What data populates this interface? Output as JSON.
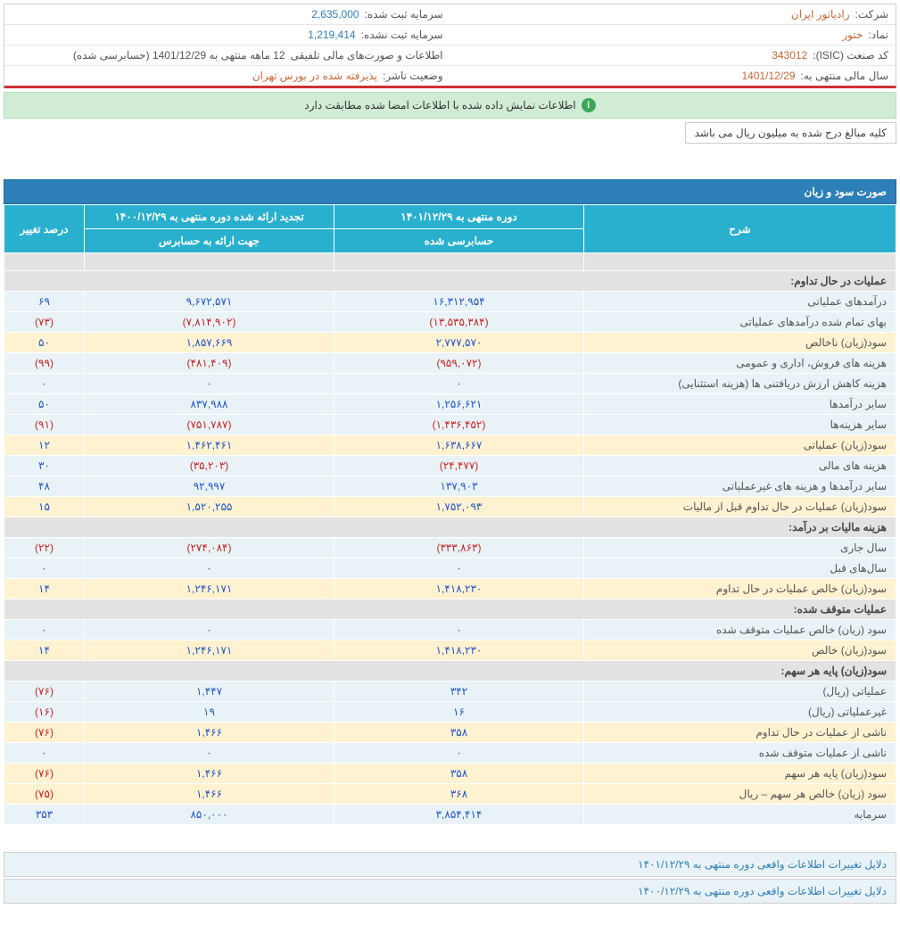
{
  "info": {
    "company_label": "شرکت:",
    "company_value": "رادیاتور ایران",
    "symbol_label": "نماد:",
    "symbol_value": "ختور",
    "isic_label": "کد صنعت (ISIC):",
    "isic_value": "343012",
    "fy_label": "سال مالی منتهی به:",
    "fy_value": "1401/12/29",
    "cap_reg_label": "سرمایه ثبت شده:",
    "cap_reg_value": "2,635,000",
    "cap_unreg_label": "سرمایه ثبت نشده:",
    "cap_unreg_value": "1,219,414",
    "report_label": "اطلاعات و صورت‌های مالی تلفیقی",
    "report_value": "12 ماهه منتهی به 1401/12/29 (حسابرسی شده)",
    "status_label": "وضعیت ناشر:",
    "status_value": "پذیرفته شده در بورس تهران"
  },
  "notice_text": "اطلاعات نمایش داده شده با اطلاعات امضا شده مطابقت دارد",
  "unit_note": "کلیه مبالغ درج شده به میلیون ریال می باشد",
  "section_title": "صورت سود و زیان",
  "headers": {
    "desc": "شرح",
    "period1": "دوره منتهی به ۱۴۰۱/۱۲/۲۹",
    "period1_sub": "حسابرسی شده",
    "period2": "تجدید ارائه شده دوره منتهی به ۱۴۰۰/۱۲/۲۹",
    "period2_sub": "جهت ارائه به حسابرس",
    "change": "درصد تغییر"
  },
  "rows": [
    {
      "type": "header",
      "desc": "عملیات در حال تداوم:"
    },
    {
      "type": "blue",
      "desc": "درآمدهای عملیاتی",
      "p1": "۱۶,۳۱۲,۹۵۴",
      "p2": "۹,۶۷۲,۵۷۱",
      "chg": "۶۹",
      "p1neg": false,
      "p2neg": false,
      "chgneg": false
    },
    {
      "type": "blue",
      "desc": "بهای تمام شده درآمدهای عملیاتی",
      "p1": "(۱۳,۵۳۵,۳۸۴)",
      "p2": "(۷,۸۱۴,۹۰۲)",
      "chg": "(۷۳)",
      "p1neg": true,
      "p2neg": true,
      "chgneg": true
    },
    {
      "type": "yellow",
      "desc": "سود(زیان) ناخالص",
      "p1": "۲,۷۷۷,۵۷۰",
      "p2": "۱,۸۵۷,۶۶۹",
      "chg": "۵۰",
      "p1neg": false,
      "p2neg": false,
      "chgneg": false
    },
    {
      "type": "blue",
      "desc": "هزینه های فروش، اداری و عمومی",
      "p1": "(۹۵۹,۰۷۲)",
      "p2": "(۴۸۱,۴۰۹)",
      "chg": "(۹۹)",
      "p1neg": true,
      "p2neg": true,
      "chgneg": true
    },
    {
      "type": "blue",
      "desc": "هزینه کاهش ارزش دریافتنی ها (هزینه استثنایی)",
      "p1": "۰",
      "p2": "۰",
      "chg": "۰",
      "p1neg": false,
      "p2neg": false,
      "chgneg": false
    },
    {
      "type": "blue",
      "desc": "سایر درآمدها",
      "p1": "۱,۲۵۶,۶۲۱",
      "p2": "۸۳۷,۹۸۸",
      "chg": "۵۰",
      "p1neg": false,
      "p2neg": false,
      "chgneg": false
    },
    {
      "type": "blue",
      "desc": "سایر هزینه‌ها",
      "p1": "(۱,۴۳۶,۴۵۲)",
      "p2": "(۷۵۱,۷۸۷)",
      "chg": "(۹۱)",
      "p1neg": true,
      "p2neg": true,
      "chgneg": true
    },
    {
      "type": "yellow",
      "desc": "سود(زیان) عملیاتی",
      "p1": "۱,۶۳۸,۶۶۷",
      "p2": "۱,۴۶۲,۴۶۱",
      "chg": "۱۲",
      "p1neg": false,
      "p2neg": false,
      "chgneg": false
    },
    {
      "type": "blue",
      "desc": "هزینه های مالی",
      "p1": "(۲۴,۴۷۷)",
      "p2": "(۳۵,۲۰۳)",
      "chg": "۳۰",
      "p1neg": true,
      "p2neg": true,
      "chgneg": false
    },
    {
      "type": "blue",
      "desc": "سایر درآمدها و هزینه های غیرعملیاتی",
      "p1": "۱۳۷,۹۰۳",
      "p2": "۹۲,۹۹۷",
      "chg": "۴۸",
      "p1neg": false,
      "p2neg": false,
      "chgneg": false
    },
    {
      "type": "yellow",
      "desc": "سود(زیان) عملیات در حال تداوم قبل از مالیات",
      "p1": "۱,۷۵۲,۰۹۳",
      "p2": "۱,۵۲۰,۲۵۵",
      "chg": "۱۵",
      "p1neg": false,
      "p2neg": false,
      "chgneg": false
    },
    {
      "type": "header",
      "desc": "هزینه مالیات بر درآمد:"
    },
    {
      "type": "blue",
      "desc": "سال جاری",
      "p1": "(۳۳۳,۸۶۳)",
      "p2": "(۲۷۴,۰۸۴)",
      "chg": "(۲۲)",
      "p1neg": true,
      "p2neg": true,
      "chgneg": true
    },
    {
      "type": "blue",
      "desc": "سال‌های قبل",
      "p1": "۰",
      "p2": "۰",
      "chg": "۰",
      "p1neg": false,
      "p2neg": false,
      "chgneg": false
    },
    {
      "type": "yellow",
      "desc": "سود(زیان) خالص عملیات در حال تداوم",
      "p1": "۱,۴۱۸,۲۳۰",
      "p2": "۱,۲۴۶,۱۷۱",
      "chg": "۱۴",
      "p1neg": false,
      "p2neg": false,
      "chgneg": false
    },
    {
      "type": "header",
      "desc": "عملیات متوقف شده:"
    },
    {
      "type": "blue",
      "desc": "سود (زیان) خالص عملیات متوقف شده",
      "p1": "۰",
      "p2": "۰",
      "chg": "۰",
      "p1neg": false,
      "p2neg": false,
      "chgneg": false
    },
    {
      "type": "yellow",
      "desc": "سود(زیان) خالص",
      "p1": "۱,۴۱۸,۲۳۰",
      "p2": "۱,۲۴۶,۱۷۱",
      "chg": "۱۴",
      "p1neg": false,
      "p2neg": false,
      "chgneg": false
    },
    {
      "type": "header",
      "desc": "سود(زیان) پایه هر سهم:"
    },
    {
      "type": "blue",
      "desc": "عملیاتی (ریال)",
      "p1": "۳۴۲",
      "p2": "۱,۴۴۷",
      "chg": "(۷۶)",
      "p1neg": false,
      "p2neg": false,
      "chgneg": true
    },
    {
      "type": "blue",
      "desc": "غیرعملیاتی (ریال)",
      "p1": "۱۶",
      "p2": "۱۹",
      "chg": "(۱۶)",
      "p1neg": false,
      "p2neg": false,
      "chgneg": true
    },
    {
      "type": "yellow",
      "desc": "ناشی از عملیات در حال تداوم",
      "p1": "۳۵۸",
      "p2": "۱,۴۶۶",
      "chg": "(۷۶)",
      "p1neg": false,
      "p2neg": false,
      "chgneg": true
    },
    {
      "type": "blue",
      "desc": "ناشی از عملیات متوقف شده",
      "p1": "۰",
      "p2": "۰",
      "chg": "۰",
      "p1neg": false,
      "p2neg": false,
      "chgneg": false
    },
    {
      "type": "yellow",
      "desc": "سود(زیان) پایه هر سهم",
      "p1": "۳۵۸",
      "p2": "۱,۴۶۶",
      "chg": "(۷۶)",
      "p1neg": false,
      "p2neg": false,
      "chgneg": true
    },
    {
      "type": "yellow",
      "desc": "سود (زیان) خالص هر سهم – ریال",
      "p1": "۳۶۸",
      "p2": "۱,۴۶۶",
      "chg": "(۷۵)",
      "p1neg": false,
      "p2neg": false,
      "chgneg": true
    },
    {
      "type": "blue",
      "desc": "سرمایه",
      "p1": "۳,۸۵۴,۴۱۴",
      "p2": "۸۵۰,۰۰۰",
      "chg": "۳۵۳",
      "p1neg": false,
      "p2neg": false,
      "chgneg": false
    }
  ],
  "footer1": "دلایل تغییرات اطلاعات واقعی دوره منتهی به ۱۴۰۱/۱۲/۲۹",
  "footer2": "دلایل تغییرات اطلاعات واقعی دوره منتهی به ۱۴۰۰/۱۲/۲۹"
}
